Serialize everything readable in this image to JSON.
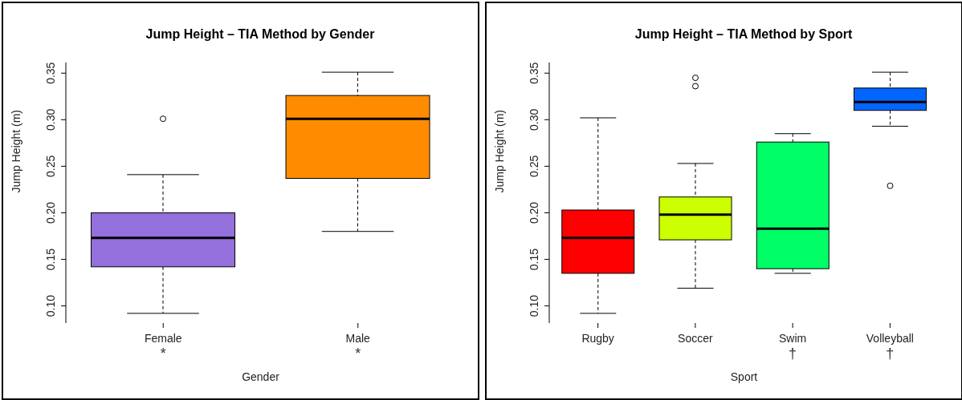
{
  "chart_data": [
    {
      "type": "box",
      "title": "Jump Height – TIA Method by Gender",
      "xlabel": "Gender",
      "ylabel": "Jump Height (m)",
      "categories": [
        "Female",
        "Male"
      ],
      "colors": [
        "#9370db",
        "#ff8c00"
      ],
      "boxes": [
        {
          "low": 0.092,
          "q1": 0.142,
          "median": 0.173,
          "q3": 0.2,
          "high": 0.241,
          "outliers": [
            0.301
          ]
        },
        {
          "low": 0.18,
          "q1": 0.237,
          "median": 0.301,
          "q3": 0.326,
          "high": 0.351
        }
      ],
      "ylim": [
        0.0816,
        0.3614
      ],
      "yticks": [
        {
          "value": 0.1,
          "label": "0.10"
        },
        {
          "value": 0.15,
          "label": "0.15"
        },
        {
          "value": 0.2,
          "label": "0.20"
        },
        {
          "value": 0.25,
          "label": "0.25"
        },
        {
          "value": 0.3,
          "label": "0.30"
        },
        {
          "value": 0.35,
          "label": "0.35"
        }
      ],
      "annotations": [
        "*",
        "*"
      ]
    },
    {
      "type": "box",
      "title": "Jump Height – TIA Method by Sport",
      "xlabel": "Sport",
      "ylabel": "Jump Height (m)",
      "categories": [
        "Rugby",
        "Soccer",
        "Swim",
        "Volleyball"
      ],
      "colors": [
        "#ff0000",
        "#ccff00",
        "#00ff66",
        "#0066ff"
      ],
      "boxes": [
        {
          "low": 0.092,
          "q1": 0.135,
          "median": 0.173,
          "q3": 0.203,
          "high": 0.302
        },
        {
          "low": 0.119,
          "q1": 0.171,
          "median": 0.198,
          "q3": 0.217,
          "high": 0.253,
          "outliers": [
            0.336,
            0.345
          ]
        },
        {
          "low": 0.135,
          "q1": 0.14,
          "median": 0.183,
          "q3": 0.276,
          "high": 0.285
        },
        {
          "low": 0.293,
          "q1": 0.31,
          "median": 0.319,
          "q3": 0.334,
          "high": 0.351,
          "outliers": [
            0.229
          ]
        }
      ],
      "ylim": [
        0.0816,
        0.3614
      ],
      "yticks": [
        {
          "value": 0.1,
          "label": "0.10"
        },
        {
          "value": 0.15,
          "label": "0.15"
        },
        {
          "value": 0.2,
          "label": "0.20"
        },
        {
          "value": 0.25,
          "label": "0.25"
        },
        {
          "value": 0.3,
          "label": "0.30"
        },
        {
          "value": 0.35,
          "label": "0.35"
        }
      ],
      "annotations": [
        null,
        null,
        "†",
        "†"
      ]
    }
  ]
}
